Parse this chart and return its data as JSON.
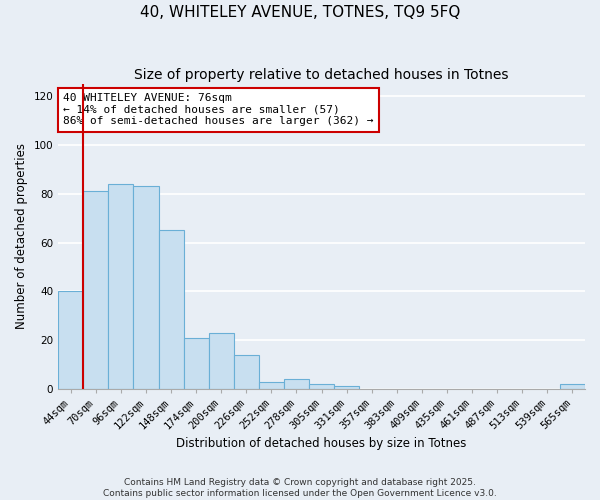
{
  "title": "40, WHITELEY AVENUE, TOTNES, TQ9 5FQ",
  "subtitle": "Size of property relative to detached houses in Totnes",
  "xlabel": "Distribution of detached houses by size in Totnes",
  "ylabel": "Number of detached properties",
  "bar_categories": [
    "44sqm",
    "70sqm",
    "96sqm",
    "122sqm",
    "148sqm",
    "174sqm",
    "200sqm",
    "226sqm",
    "252sqm",
    "278sqm",
    "305sqm",
    "331sqm",
    "357sqm",
    "383sqm",
    "409sqm",
    "435sqm",
    "461sqm",
    "487sqm",
    "513sqm",
    "539sqm",
    "565sqm"
  ],
  "bar_values": [
    40,
    81,
    84,
    83,
    65,
    21,
    23,
    14,
    3,
    4,
    2,
    1,
    0,
    0,
    0,
    0,
    0,
    0,
    0,
    0,
    2
  ],
  "bar_color": "#c8dff0",
  "bar_edge_color": "#6aafd6",
  "annotation_title": "40 WHITELEY AVENUE: 76sqm",
  "annotation_line1": "← 14% of detached houses are smaller (57)",
  "annotation_line2": "86% of semi-detached houses are larger (362) →",
  "annotation_box_color": "#ffffff",
  "annotation_box_edge": "#cc0000",
  "red_line_color": "#cc0000",
  "ylim": [
    0,
    125
  ],
  "yticks": [
    0,
    20,
    40,
    60,
    80,
    100,
    120
  ],
  "footer1": "Contains HM Land Registry data © Crown copyright and database right 2025.",
  "footer2": "Contains public sector information licensed under the Open Government Licence v3.0.",
  "background_color": "#e8eef5",
  "plot_bg_color": "#e8eef5",
  "grid_color": "#ffffff",
  "title_fontsize": 11,
  "subtitle_fontsize": 10,
  "axis_label_fontsize": 8.5,
  "tick_fontsize": 7.5,
  "annotation_fontsize": 8,
  "footer_fontsize": 6.5
}
